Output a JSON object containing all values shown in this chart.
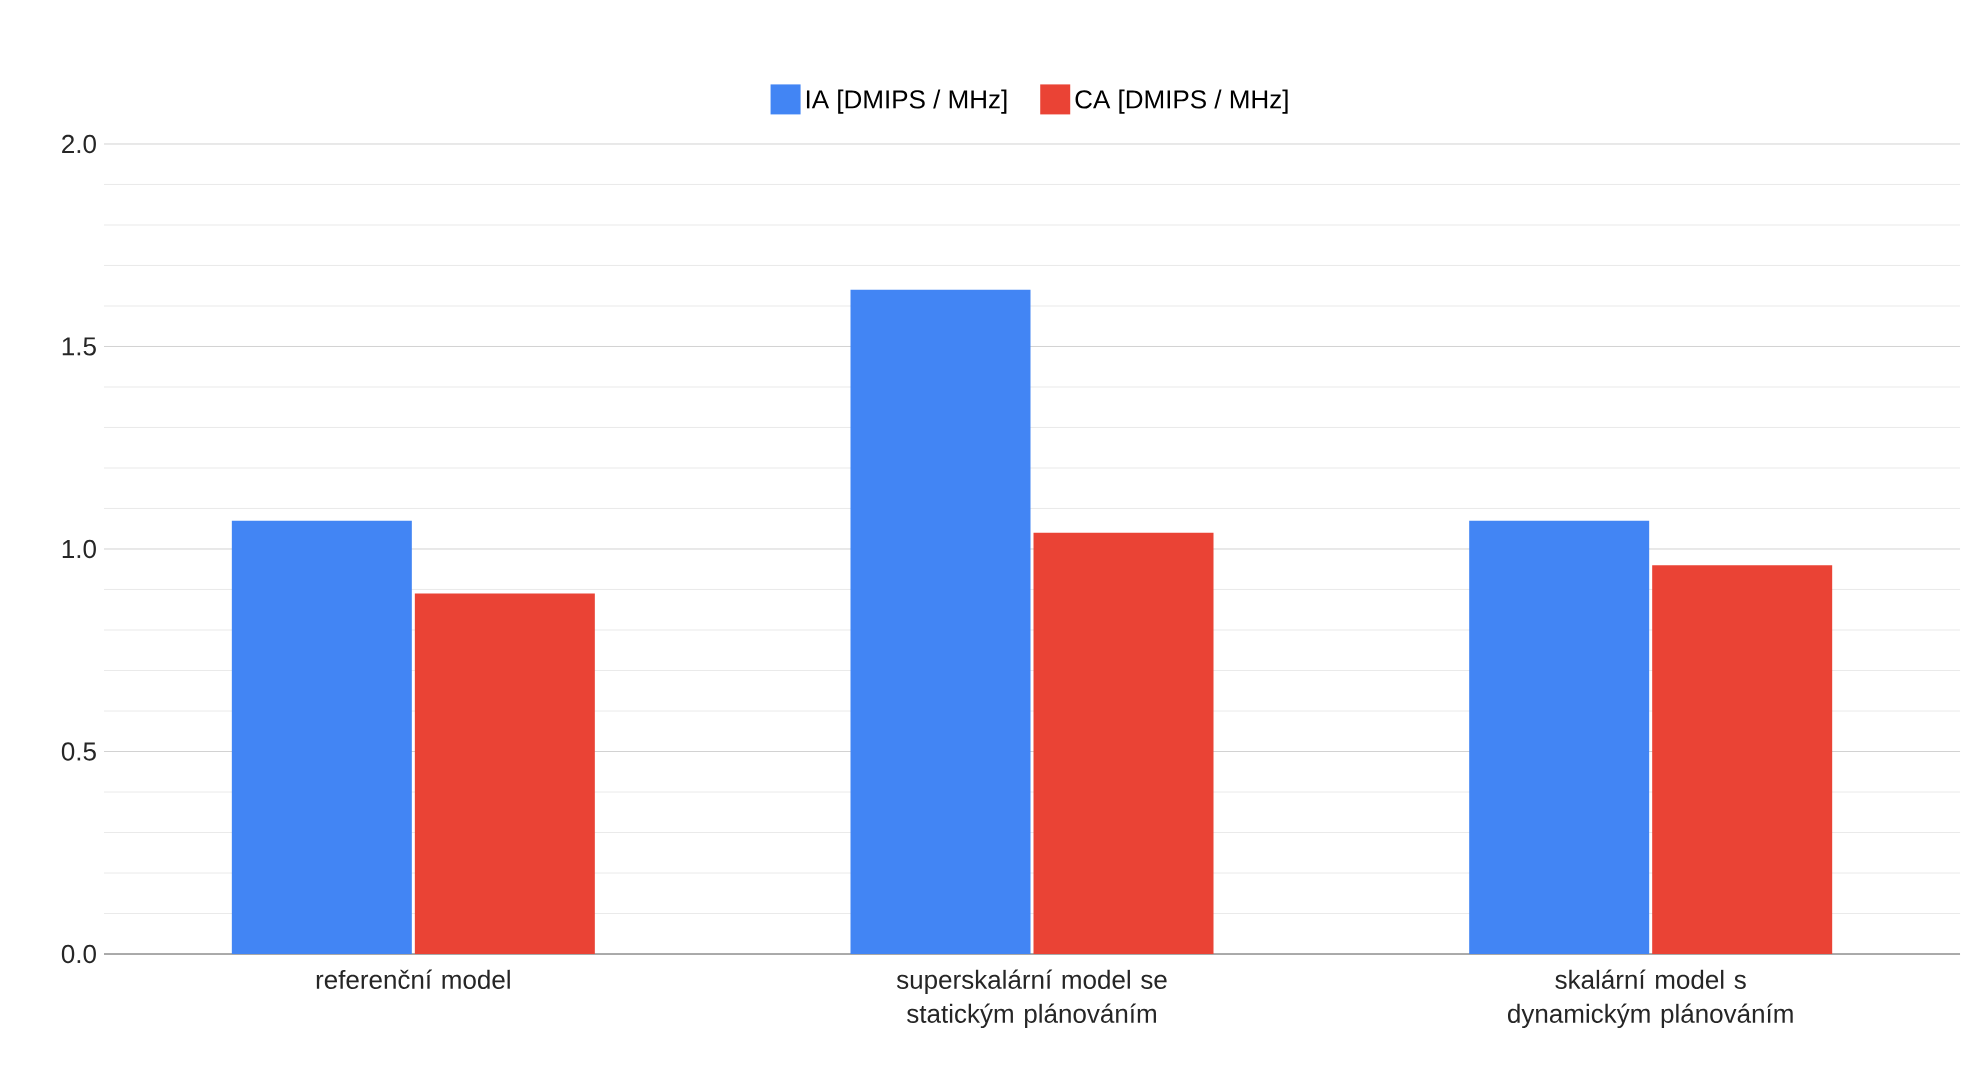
{
  "chart_data": {
    "type": "bar",
    "categories": [
      "referenční model",
      "superskalární model se statickým plánováním",
      "skalární model s dynamickým plánováním"
    ],
    "series": [
      {
        "name": "IA  [DMIPS / MHz]",
        "color": "#4285f4",
        "values": [
          1.07,
          1.64,
          1.07
        ]
      },
      {
        "name": "CA [DMIPS / MHz]",
        "color": "#ea4335",
        "values": [
          0.89,
          1.04,
          0.96
        ]
      }
    ],
    "ylim": [
      0,
      2
    ],
    "yticks": [
      {
        "value": 0,
        "label": "0.0"
      },
      {
        "value": 0.5,
        "label": "0.5"
      },
      {
        "value": 1,
        "label": "1.0"
      },
      {
        "value": 1.5,
        "label": "1.5"
      },
      {
        "value": 2,
        "label": "2.0"
      }
    ],
    "grid": "y",
    "legend": "top"
  }
}
